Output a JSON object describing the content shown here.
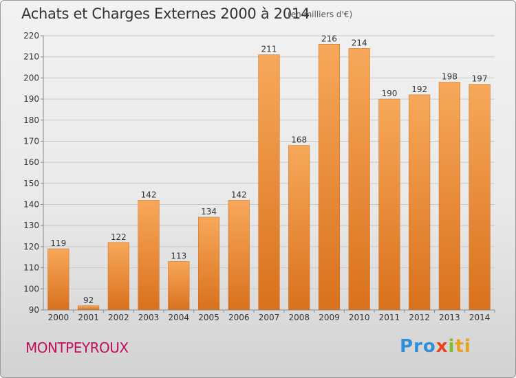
{
  "header": {
    "title": "Achats et Charges Externes 2000 à 2014",
    "subtitle": "(en milliers d'€)"
  },
  "footer": {
    "town": "MONTPEYROUX",
    "logo": [
      "Pro",
      "x",
      "i",
      "ti"
    ]
  },
  "colors": {
    "bar_top": "#f7a85a",
    "bar_bottom": "#d9711d",
    "town": "#c0105d",
    "grid": "#c8c8c8"
  },
  "chart_data": {
    "type": "bar",
    "title": "Achats et Charges Externes 2000 à 2014",
    "subtitle": "(en milliers d'€)",
    "xlabel": "",
    "ylabel": "",
    "categories": [
      "2000",
      "2001",
      "2002",
      "2003",
      "2004",
      "2005",
      "2006",
      "2007",
      "2008",
      "2009",
      "2010",
      "2011",
      "2012",
      "2013",
      "2014"
    ],
    "values": [
      119,
      92,
      122,
      142,
      113,
      134,
      142,
      211,
      168,
      216,
      214,
      190,
      192,
      198,
      197
    ],
    "ylim": [
      90,
      220
    ],
    "yticks": [
      90,
      100,
      110,
      120,
      130,
      140,
      150,
      160,
      170,
      180,
      190,
      200,
      210,
      220
    ],
    "grid": true,
    "legend": "none"
  }
}
